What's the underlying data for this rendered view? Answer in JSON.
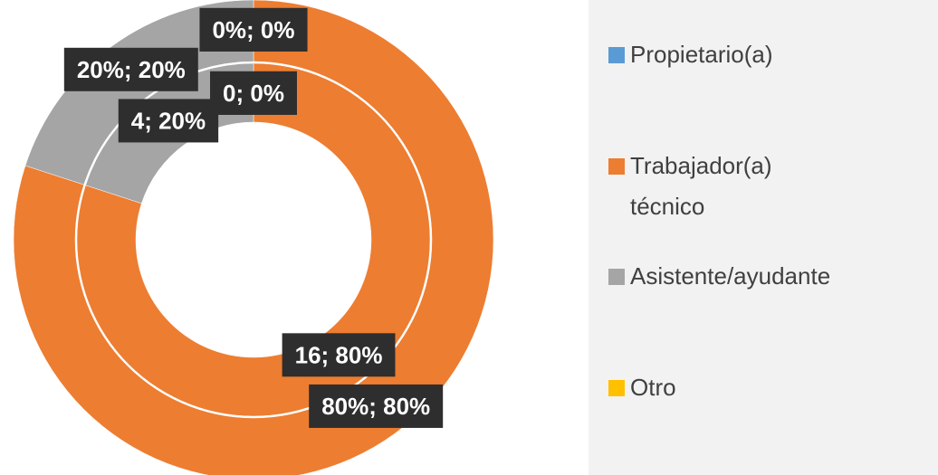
{
  "chart_data": {
    "type": "doughnut",
    "categories": [
      "Propietario(a)",
      "Trabajador(a) técnico",
      "Asistente/ayudante",
      "Otro"
    ],
    "colors": [
      "#5b9bd5",
      "#ed7d31",
      "#a5a5a5",
      "#ffc000"
    ],
    "series": [
      {
        "values": [
          0,
          16,
          4,
          0
        ],
        "value_labels": [
          "0; 0%",
          "16; 80%",
          "4; 20%",
          "0; 0%"
        ]
      },
      {
        "values": [
          0,
          80,
          20,
          0
        ],
        "value_labels": [
          "0%; 0%",
          "80%; 80%",
          "20%; 20%",
          "0%; 0%"
        ]
      }
    ]
  }
}
